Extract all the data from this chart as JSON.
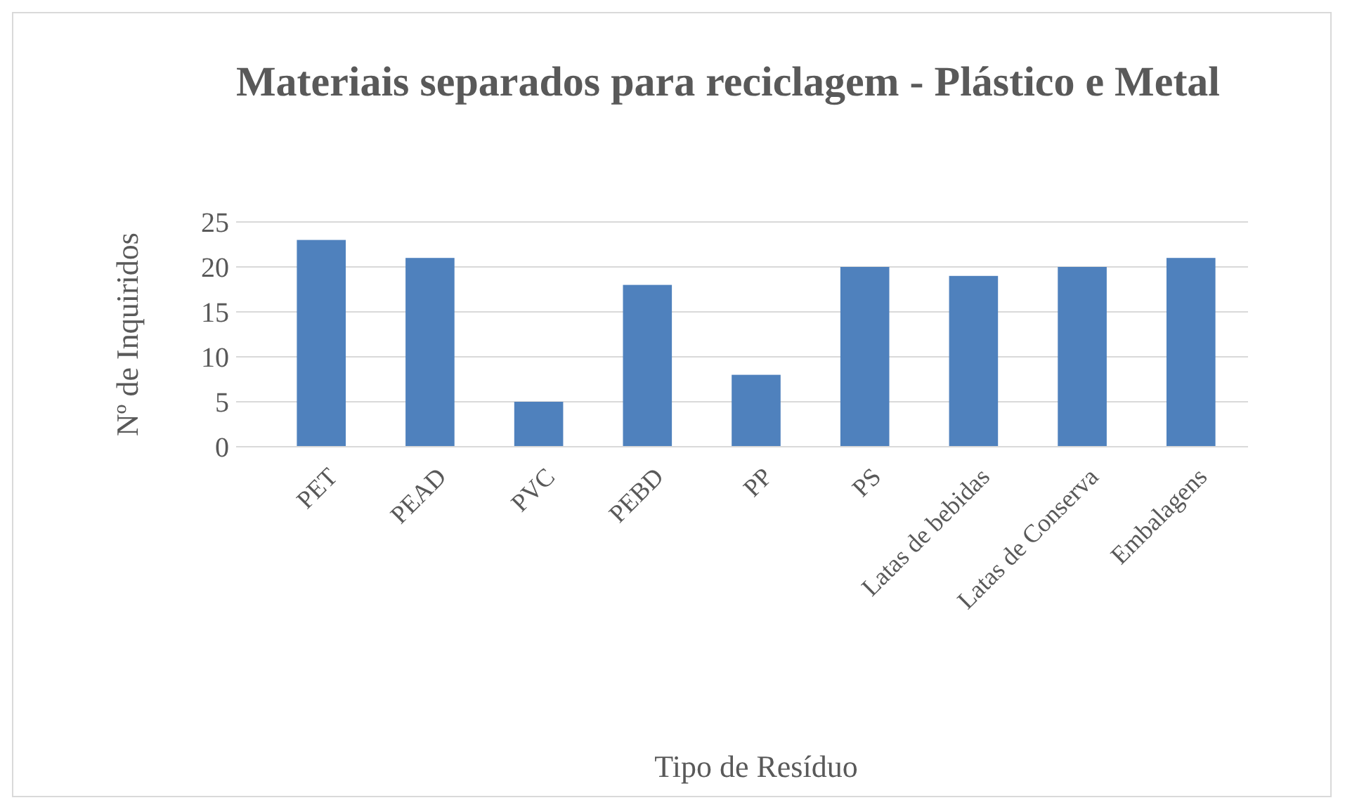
{
  "chart_data": {
    "type": "bar",
    "title": "Materiais separados para reciclagem - Plástico e Metal",
    "xlabel": "Tipo de Resíduo",
    "ylabel": "Nº de Inquiridos",
    "categories": [
      "PET",
      "PEAD",
      "PVC",
      "PEBD",
      "PP",
      "PS",
      "Latas de bebidas",
      "Latas de Conserva",
      "Embalagens"
    ],
    "values": [
      23,
      21,
      5,
      18,
      8,
      20,
      19,
      20,
      21
    ],
    "color": "#4f81bd",
    "ylim": [
      0,
      25
    ],
    "yticks": [
      0,
      5,
      10,
      15,
      20,
      25
    ],
    "grid": "y"
  }
}
